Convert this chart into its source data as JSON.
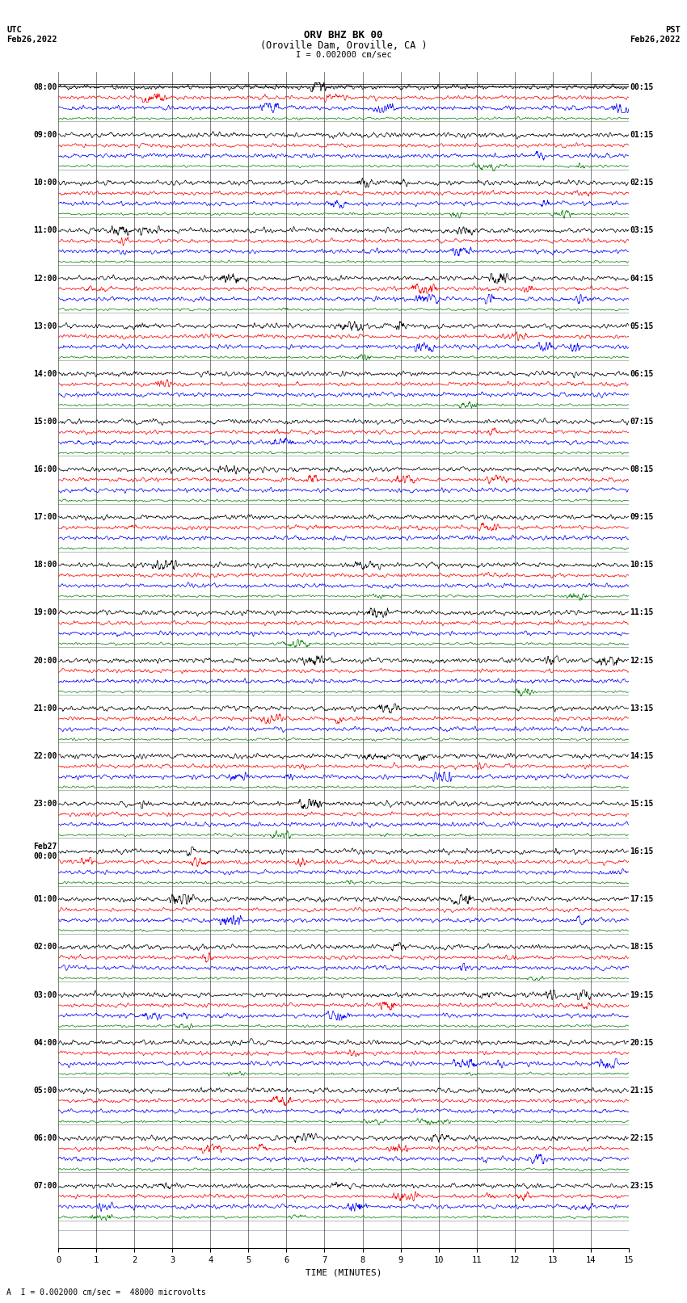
{
  "title_line1": "ORV BHZ BK 00",
  "title_line2": "(Oroville Dam, Oroville, CA )",
  "scale_label": "I = 0.002000 cm/sec",
  "utc_label": "UTC\nFeb26,2022",
  "pst_label": "PST\nFeb26,2022",
  "xlabel": "TIME (MINUTES)",
  "footer_label": "A  I = 0.002000 cm/sec =  48000 microvolts",
  "left_times": [
    "08:00",
    "09:00",
    "10:00",
    "11:00",
    "12:00",
    "13:00",
    "14:00",
    "15:00",
    "16:00",
    "17:00",
    "18:00",
    "19:00",
    "20:00",
    "21:00",
    "22:00",
    "23:00",
    "Feb27\n00:00",
    "01:00",
    "02:00",
    "03:00",
    "04:00",
    "05:00",
    "06:00",
    "07:00"
  ],
  "right_times": [
    "00:15",
    "01:15",
    "02:15",
    "03:15",
    "04:15",
    "05:15",
    "06:15",
    "07:15",
    "08:15",
    "09:15",
    "10:15",
    "11:15",
    "12:15",
    "13:15",
    "14:15",
    "15:15",
    "16:15",
    "17:15",
    "18:15",
    "19:15",
    "20:15",
    "21:15",
    "22:15",
    "23:15"
  ],
  "trace_colors": [
    "black",
    "red",
    "blue",
    "green"
  ],
  "num_hour_groups": 24,
  "traces_per_group": 4,
  "minutes": 15,
  "samples_per_trace": 1800,
  "noise_scale": [
    0.25,
    0.2,
    0.22,
    0.12
  ],
  "background_color": "white",
  "figsize": [
    8.5,
    16.13
  ],
  "dpi": 100,
  "x_ticks": [
    0,
    1,
    2,
    3,
    4,
    5,
    6,
    7,
    8,
    9,
    10,
    11,
    12,
    13,
    14,
    15
  ],
  "x_ticklabels": [
    "0",
    "1",
    "2",
    "3",
    "4",
    "5",
    "6",
    "7",
    "8",
    "9",
    "10",
    "11",
    "12",
    "13",
    "14",
    "15"
  ]
}
